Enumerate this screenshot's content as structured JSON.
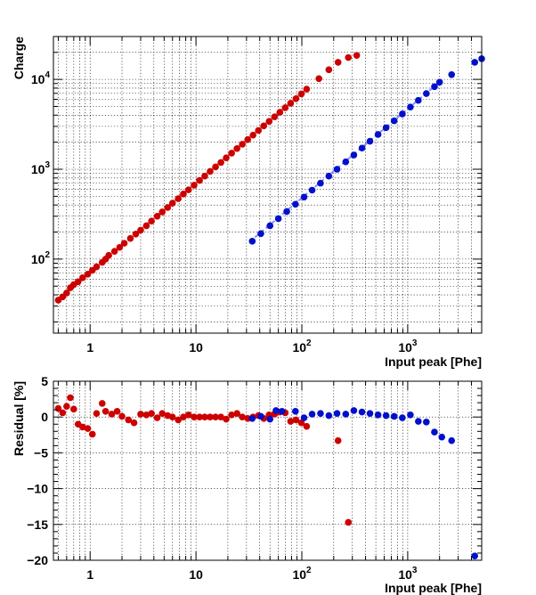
{
  "colors": {
    "red": "#cc0000",
    "blue": "#0010cc",
    "fit_red": "#f08080",
    "fit_blue": "#8c8cff"
  },
  "chart_data": [
    {
      "type": "scatter",
      "x_scale": "log",
      "y_scale": "log",
      "xlim": [
        0.45,
        5000
      ],
      "ylim": [
        15,
        30000
      ],
      "xlabel": "Input peak  [Phe]",
      "ylabel": "Charge",
      "x_ticks": [
        {
          "v": 1,
          "base": "1",
          "exp": ""
        },
        {
          "v": 10,
          "base": "10",
          "exp": ""
        },
        {
          "v": 100,
          "base": "10",
          "exp": "2"
        },
        {
          "v": 1000,
          "base": "10",
          "exp": "3"
        }
      ],
      "y_ticks": [
        {
          "v": 100,
          "base": "10",
          "exp": "2"
        },
        {
          "v": 1000,
          "base": "10",
          "exp": "3"
        },
        {
          "v": 10000,
          "base": "10",
          "exp": "4"
        }
      ],
      "series": [
        {
          "name": "red",
          "color": "#cc0000",
          "points": [
            [
              0.5,
              35
            ],
            [
              0.55,
              38
            ],
            [
              0.6,
              42
            ],
            [
              0.65,
              48
            ],
            [
              0.7,
              52
            ],
            [
              0.77,
              56
            ],
            [
              0.85,
              62
            ],
            [
              0.95,
              68
            ],
            [
              1.05,
              75
            ],
            [
              1.15,
              82
            ],
            [
              1.3,
              92
            ],
            [
              1.4,
              100
            ],
            [
              1.5,
              110
            ],
            [
              1.7,
              122
            ],
            [
              1.9,
              135
            ],
            [
              2.1,
              150
            ],
            [
              2.4,
              170
            ],
            [
              2.7,
              190
            ],
            [
              3.0,
              210
            ],
            [
              3.4,
              235
            ],
            [
              3.8,
              265
            ],
            [
              4.3,
              300
            ],
            [
              4.8,
              335
            ],
            [
              5.4,
              375
            ],
            [
              6.0,
              420
            ],
            [
              6.8,
              470
            ],
            [
              7.6,
              530
            ],
            [
              8.5,
              590
            ],
            [
              9.6,
              665
            ],
            [
              10.8,
              750
            ],
            [
              12.1,
              840
            ],
            [
              13.6,
              945
            ],
            [
              15.3,
              1060
            ],
            [
              17.2,
              1190
            ],
            [
              19.3,
              1340
            ],
            [
              21.7,
              1510
            ],
            [
              24.4,
              1700
            ],
            [
              27.4,
              1900
            ],
            [
              30.8,
              2140
            ],
            [
              34.6,
              2400
            ],
            [
              38.9,
              2700
            ],
            [
              43.7,
              3040
            ],
            [
              49.1,
              3410
            ],
            [
              55.2,
              3830
            ],
            [
              62.0,
              4300
            ],
            [
              69.7,
              4840
            ],
            [
              78.3,
              5430
            ],
            [
              88.0,
              6100
            ],
            [
              99.0,
              6900
            ],
            [
              111,
              7800
            ],
            [
              145,
              10200
            ],
            [
              180,
              12800
            ],
            [
              220,
              15500
            ],
            [
              275,
              17500
            ],
            [
              330,
              18500
            ]
          ],
          "fit": [
            [
              0.5,
              36
            ],
            [
              115,
              8100
            ]
          ]
        },
        {
          "name": "blue",
          "color": "#0010cc",
          "points": [
            [
              34,
              158
            ],
            [
              41,
              192
            ],
            [
              50,
              235
            ],
            [
              60,
              282
            ],
            [
              72,
              339
            ],
            [
              87,
              408
            ],
            [
              105,
              490
            ],
            [
              125,
              585
            ],
            [
              150,
              700
            ],
            [
              180,
              840
            ],
            [
              215,
              1000
            ],
            [
              260,
              1210
            ],
            [
              310,
              1440
            ],
            [
              370,
              1720
            ],
            [
              440,
              2050
            ],
            [
              525,
              2440
            ],
            [
              625,
              2900
            ],
            [
              745,
              3460
            ],
            [
              890,
              4120
            ],
            [
              1060,
              4920
            ],
            [
              1260,
              5840
            ],
            [
              1500,
              6950
            ],
            [
              1790,
              8300
            ],
            [
              2000,
              9300
            ],
            [
              2600,
              11300
            ],
            [
              4300,
              15500
            ],
            [
              5000,
              17000
            ]
          ],
          "fit": [
            [
              32,
              155
            ],
            [
              2100,
              9800
            ]
          ]
        }
      ]
    },
    {
      "type": "scatter",
      "x_scale": "log",
      "y_scale": "linear",
      "xlim": [
        0.45,
        5000
      ],
      "ylim": [
        -20,
        5
      ],
      "xlabel": "Input peak  [Phe]",
      "ylabel": "Residual [%]",
      "x_ticks": [
        {
          "v": 1,
          "base": "1",
          "exp": ""
        },
        {
          "v": 10,
          "base": "10",
          "exp": ""
        },
        {
          "v": 100,
          "base": "10",
          "exp": "2"
        },
        {
          "v": 1000,
          "base": "10",
          "exp": "3"
        }
      ],
      "y_ticks": [
        {
          "v": 5,
          "label": "5"
        },
        {
          "v": 0,
          "label": "0"
        },
        {
          "v": -5,
          "label": "−5"
        },
        {
          "v": -10,
          "label": "−10"
        },
        {
          "v": -15,
          "label": "−15"
        },
        {
          "v": -20,
          "label": "−20"
        }
      ],
      "series": [
        {
          "name": "red",
          "color": "#cc0000",
          "points": [
            [
              0.5,
              1.2
            ],
            [
              0.55,
              0.6
            ],
            [
              0.6,
              1.5
            ],
            [
              0.65,
              2.7
            ],
            [
              0.7,
              1.1
            ],
            [
              0.77,
              -1.0
            ],
            [
              0.85,
              -1.4
            ],
            [
              0.95,
              -1.6
            ],
            [
              1.05,
              -2.4
            ],
            [
              1.15,
              0.5
            ],
            [
              1.3,
              1.9
            ],
            [
              1.4,
              0.8
            ],
            [
              1.6,
              0.4
            ],
            [
              1.8,
              0.8
            ],
            [
              2.0,
              0.1
            ],
            [
              2.3,
              -0.4
            ],
            [
              2.6,
              -0.8
            ],
            [
              3.0,
              0.4
            ],
            [
              3.4,
              0.3
            ],
            [
              3.8,
              0.5
            ],
            [
              4.3,
              -0.1
            ],
            [
              4.8,
              0.5
            ],
            [
              5.4,
              0.2
            ],
            [
              6.0,
              0.0
            ],
            [
              6.8,
              -0.4
            ],
            [
              7.6,
              0.0
            ],
            [
              8.5,
              0.3
            ],
            [
              9.6,
              0.0
            ],
            [
              10.8,
              0.0
            ],
            [
              12.1,
              0.0
            ],
            [
              13.6,
              0.0
            ],
            [
              15.3,
              0.0
            ],
            [
              17.2,
              0.0
            ],
            [
              19.3,
              -0.3
            ],
            [
              21.7,
              0.3
            ],
            [
              24.4,
              0.5
            ],
            [
              27.4,
              0.0
            ],
            [
              30.8,
              -0.2
            ],
            [
              34.6,
              0.0
            ],
            [
              38.9,
              0.2
            ],
            [
              43.7,
              -0.2
            ],
            [
              49.1,
              0.3
            ],
            [
              55.2,
              0.4
            ],
            [
              62.0,
              0.7
            ],
            [
              69.7,
              0.6
            ],
            [
              78.3,
              -0.6
            ],
            [
              88.0,
              -0.4
            ],
            [
              99.0,
              -0.8
            ],
            [
              111,
              -1.3
            ],
            [
              220,
              -3.3
            ],
            [
              275,
              -14.7
            ]
          ]
        },
        {
          "name": "blue",
          "color": "#0010cc",
          "points": [
            [
              34,
              -0.2
            ],
            [
              41,
              0.1
            ],
            [
              50,
              -0.3
            ],
            [
              57,
              0.9
            ],
            [
              65,
              0.8
            ],
            [
              87,
              0.8
            ],
            [
              105,
              -0.1
            ],
            [
              125,
              0.4
            ],
            [
              150,
              0.5
            ],
            [
              180,
              0.2
            ],
            [
              215,
              0.5
            ],
            [
              260,
              0.4
            ],
            [
              310,
              0.9
            ],
            [
              370,
              0.7
            ],
            [
              440,
              0.5
            ],
            [
              525,
              0.3
            ],
            [
              625,
              0.2
            ],
            [
              745,
              0.1
            ],
            [
              890,
              -0.1
            ],
            [
              1060,
              0.3
            ],
            [
              1260,
              -0.6
            ],
            [
              1500,
              -0.7
            ],
            [
              1790,
              -2.1
            ],
            [
              2100,
              -2.8
            ],
            [
              2600,
              -3.3
            ],
            [
              4300,
              -19.4
            ]
          ]
        }
      ]
    }
  ]
}
